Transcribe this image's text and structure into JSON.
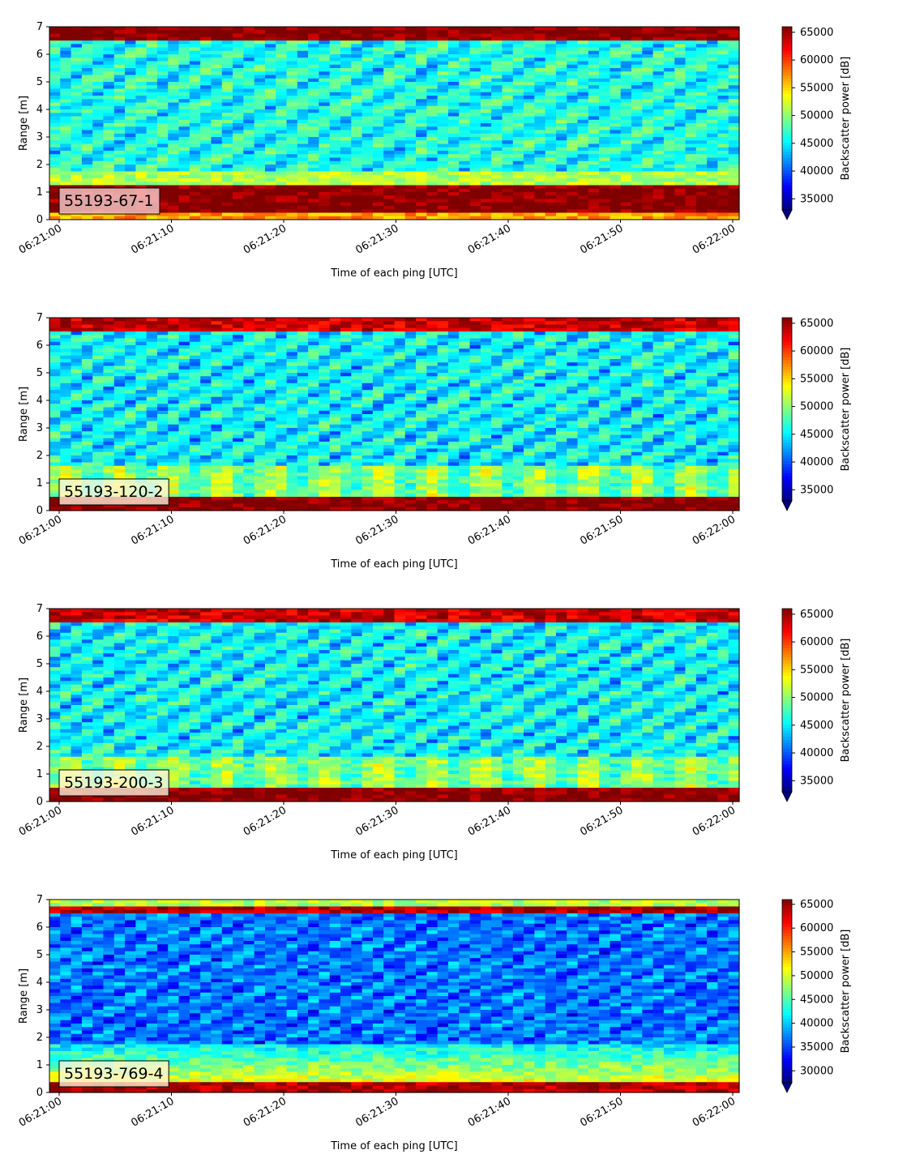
{
  "chart_data": [
    {
      "type": "heatmap",
      "label": "55193-67-1",
      "xlabel": "Time of each ping [UTC]",
      "ylabel": "Range [m]",
      "xticks": [
        "06:21:00",
        "06:21:10",
        "06:21:20",
        "06:21:30",
        "06:21:40",
        "06:21:50",
        "06:22:00"
      ],
      "yticks": [
        "0",
        "1",
        "2",
        "3",
        "4",
        "5",
        "6",
        "7"
      ],
      "xlim": [
        "06:21:00",
        "06:22:00"
      ],
      "ylim": [
        0,
        7
      ],
      "colorbar": {
        "label": "Backscatter power [dB]",
        "min": 33000,
        "max": 66000,
        "ticks": [
          "35000",
          "40000",
          "45000",
          "50000",
          "55000",
          "60000",
          "65000"
        ],
        "colormap": "jet",
        "extend": "min"
      }
    },
    {
      "type": "heatmap",
      "label": "55193-120-2",
      "xlabel": "Time of each ping [UTC]",
      "ylabel": "Range [m]",
      "xticks": [
        "06:21:00",
        "06:21:10",
        "06:21:20",
        "06:21:30",
        "06:21:40",
        "06:21:50",
        "06:22:00"
      ],
      "yticks": [
        "0",
        "1",
        "2",
        "3",
        "4",
        "5",
        "6",
        "7"
      ],
      "xlim": [
        "06:21:00",
        "06:22:00"
      ],
      "ylim": [
        0,
        7
      ],
      "colorbar": {
        "label": "Backscatter power [dB]",
        "min": 33000,
        "max": 66000,
        "ticks": [
          "35000",
          "40000",
          "45000",
          "50000",
          "55000",
          "60000",
          "65000"
        ],
        "colormap": "jet",
        "extend": "min"
      }
    },
    {
      "type": "heatmap",
      "label": "55193-200-3",
      "xlabel": "Time of each ping [UTC]",
      "ylabel": "Range [m]",
      "xticks": [
        "06:21:00",
        "06:21:10",
        "06:21:20",
        "06:21:30",
        "06:21:40",
        "06:21:50",
        "06:22:00"
      ],
      "yticks": [
        "0",
        "1",
        "2",
        "3",
        "4",
        "5",
        "6",
        "7"
      ],
      "xlim": [
        "06:21:00",
        "06:22:00"
      ],
      "ylim": [
        0,
        7
      ],
      "colorbar": {
        "label": "Backscatter power [dB]",
        "min": 33000,
        "max": 66000,
        "ticks": [
          "35000",
          "40000",
          "45000",
          "50000",
          "55000",
          "60000",
          "65000"
        ],
        "colormap": "jet",
        "extend": "min"
      }
    },
    {
      "type": "heatmap",
      "label": "55193-769-4",
      "xlabel": "Time of each ping [UTC]",
      "ylabel": "Range [m]",
      "xticks": [
        "06:21:00",
        "06:21:10",
        "06:21:20",
        "06:21:30",
        "06:21:40",
        "06:21:50",
        "06:22:00"
      ],
      "yticks": [
        "0",
        "1",
        "2",
        "3",
        "4",
        "5",
        "6",
        "7"
      ],
      "xlim": [
        "06:21:00",
        "06:22:00"
      ],
      "ylim": [
        0,
        7
      ],
      "colorbar": {
        "label": "Backscatter power [dB]",
        "min": 27500,
        "max": 66000,
        "ticks": [
          "30000",
          "35000",
          "40000",
          "45000",
          "50000",
          "55000",
          "60000",
          "65000"
        ],
        "colormap": "jet",
        "extend": "min"
      }
    }
  ]
}
